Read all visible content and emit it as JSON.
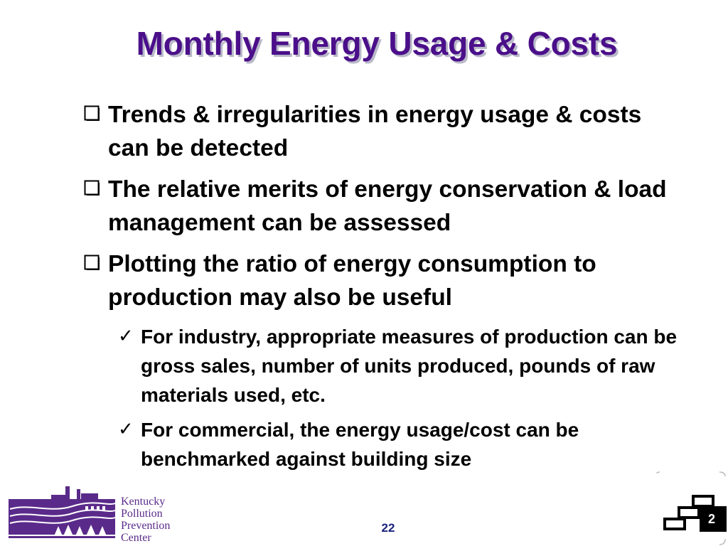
{
  "slide": {
    "title": "Monthly Energy Usage & Costs",
    "page_number": "22"
  },
  "bullets": [
    {
      "text": "Trends & irregularities in energy usage & costs can be detected"
    },
    {
      "text": "The relative merits of energy conservation & load management can be assessed"
    },
    {
      "text": "Plotting the ratio of energy consumption to production may also be useful"
    }
  ],
  "sub_bullets": [
    {
      "text": "For industry, appropriate measures of production can be gross sales, number of units produced, pounds of raw materials used, etc."
    },
    {
      "text": "For commercial, the energy usage/cost can be benchmarked against building size"
    }
  ],
  "logo": {
    "line1": "Kentucky",
    "line2": "Pollution",
    "line3": "Prevention",
    "line4": "Center"
  },
  "corner_badge": {
    "number": "2"
  },
  "icons": {
    "bullet": "checkbox-square-icon",
    "sub_bullet": "checkmark-icon",
    "corner": "stairs-icon"
  },
  "colors": {
    "title": "#4b0f8a",
    "title_shadow": "#b9b9c9",
    "logo": "#5a2a8a",
    "page_number": "#1a237e"
  }
}
